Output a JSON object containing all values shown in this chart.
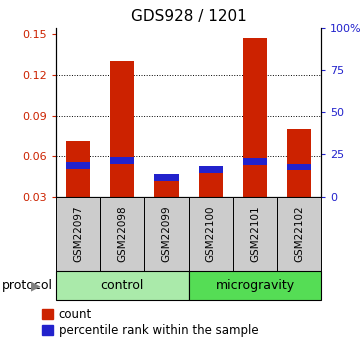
{
  "title": "GDS928 / 1201",
  "samples": [
    "GSM22097",
    "GSM22098",
    "GSM22099",
    "GSM22100",
    "GSM22101",
    "GSM22102"
  ],
  "count_values": [
    0.071,
    0.13,
    0.042,
    0.048,
    0.147,
    0.08
  ],
  "percentile_values": [
    0.053,
    0.057,
    0.044,
    0.05,
    0.056,
    0.052
  ],
  "groups": [
    {
      "label": "control",
      "indices": [
        0,
        1,
        2
      ],
      "color": "#aaeaaa"
    },
    {
      "label": "microgravity",
      "indices": [
        3,
        4,
        5
      ],
      "color": "#55dd55"
    }
  ],
  "bar_color_red": "#cc2200",
  "bar_color_blue": "#2222cc",
  "ylim_left": [
    0.03,
    0.155
  ],
  "yticks_left": [
    0.03,
    0.06,
    0.09,
    0.12,
    0.15
  ],
  "ylim_right": [
    0,
    100
  ],
  "yticks_right": [
    0,
    25,
    50,
    75,
    100
  ],
  "ytick_labels_right": [
    "0",
    "25",
    "50",
    "75",
    "100%"
  ],
  "ylabel_color_left": "#cc2200",
  "ylabel_color_right": "#2222cc",
  "sample_box_color": "#cccccc",
  "protocol_label": "protocol",
  "legend_count": "count",
  "legend_percentile": "percentile rank within the sample"
}
